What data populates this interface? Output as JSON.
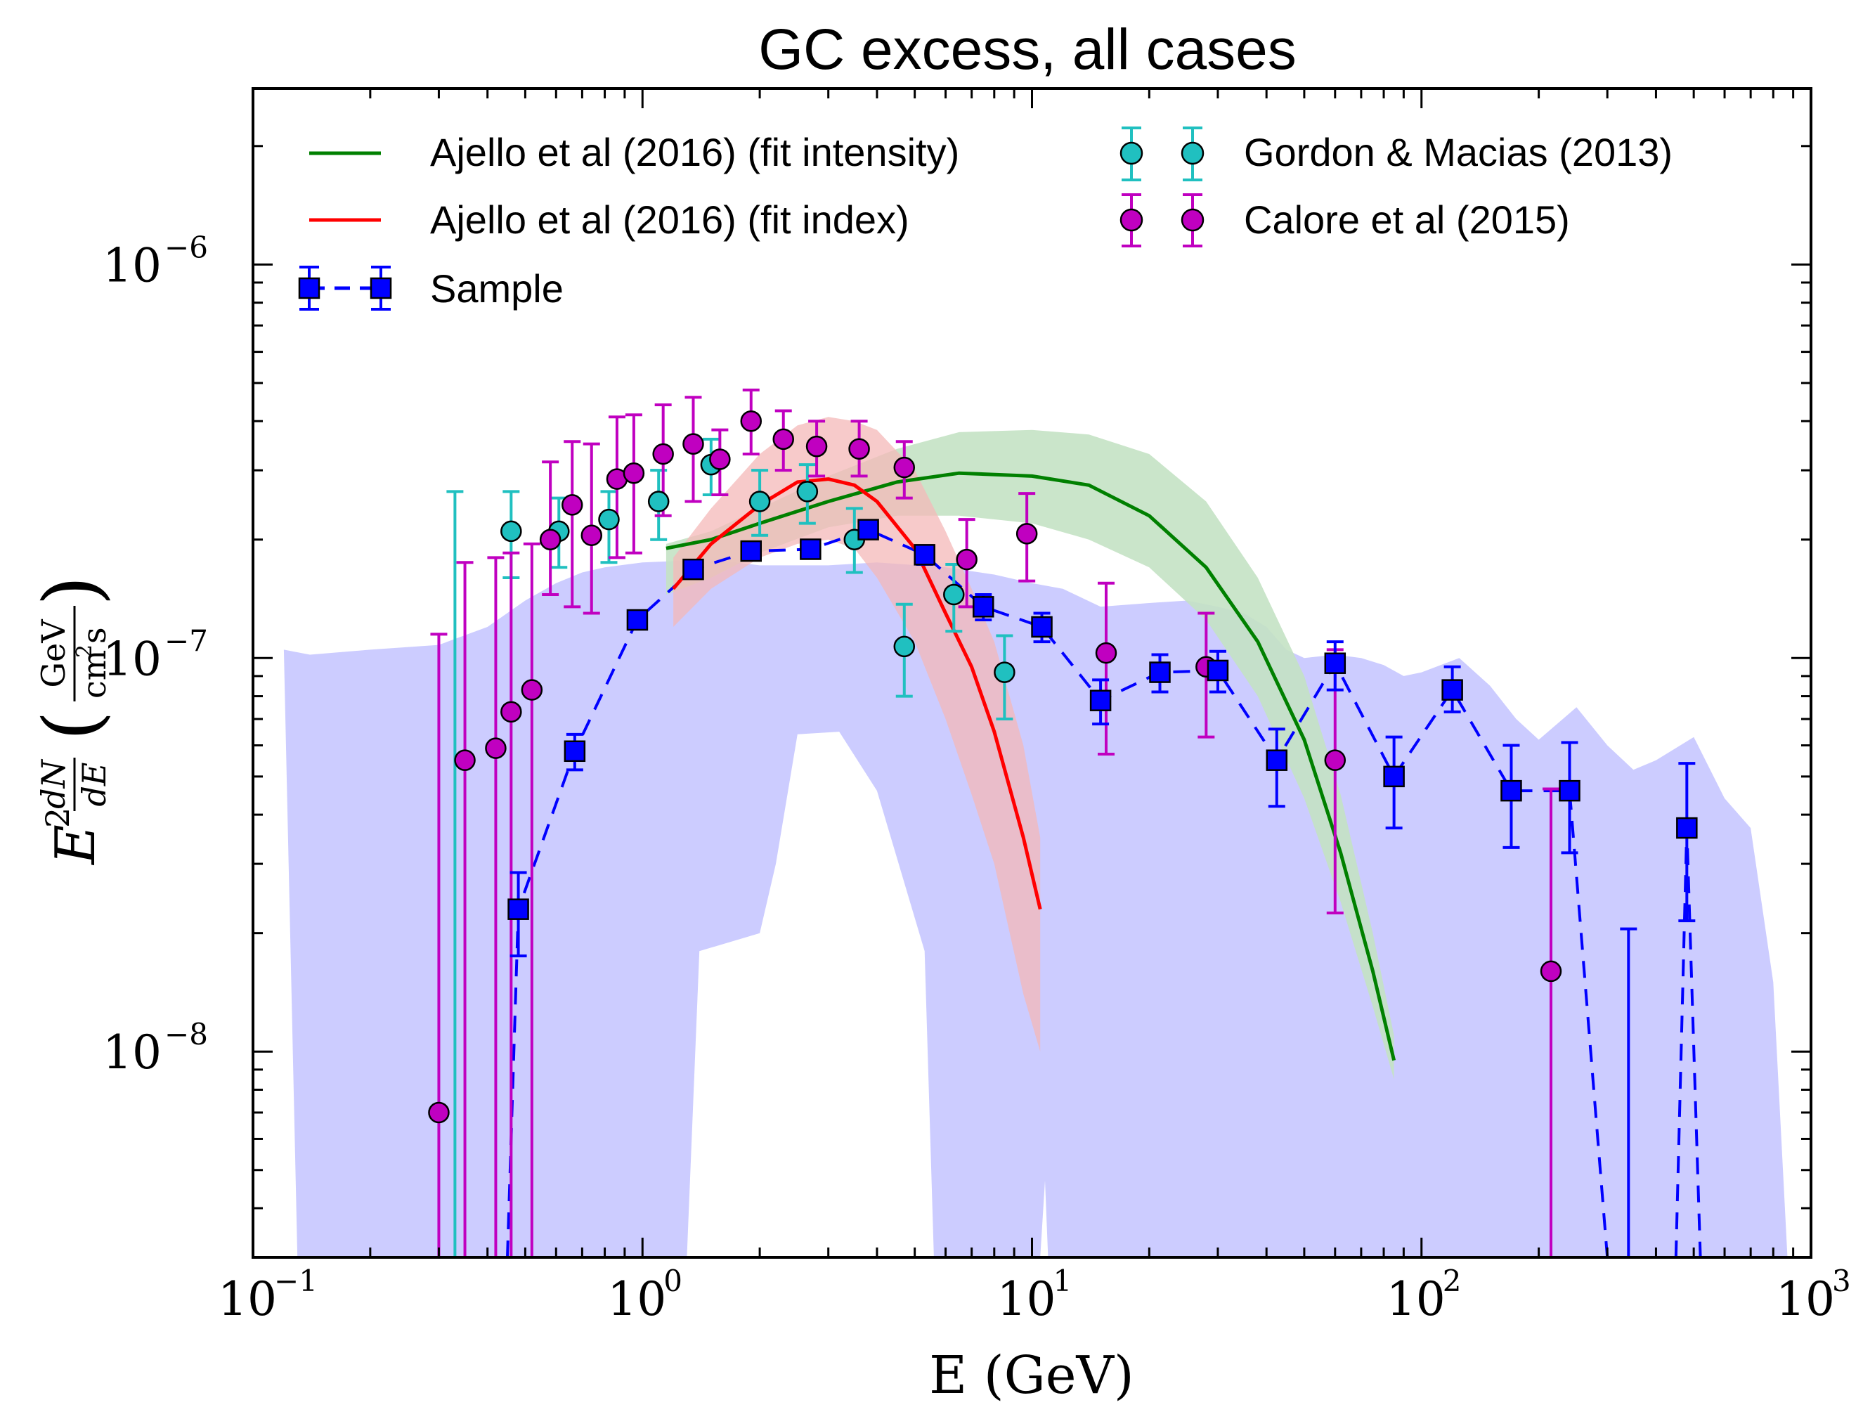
{
  "chart_data": {
    "type": "scatter",
    "title": "GC excess, all cases",
    "xlabel": "E (GeV)",
    "ylabel": {
      "main": "E",
      "exp": "2",
      "num": "dN",
      "den": "dE",
      "unit_num": "GeV",
      "unit_den_cm": "cm",
      "unit_den_exp": "2",
      "unit_den_s": "s"
    },
    "xscale": "log",
    "yscale": "log",
    "xlim": [
      0.1,
      1000
    ],
    "ylim": [
      3e-09,
      2.8e-06
    ],
    "x_ticks": [
      {
        "value": 0.1,
        "base": "10",
        "exp": "−1"
      },
      {
        "value": 1,
        "base": "10",
        "exp": "0"
      },
      {
        "value": 10,
        "base": "10",
        "exp": "1"
      },
      {
        "value": 100,
        "base": "10",
        "exp": "2"
      },
      {
        "value": 1000,
        "base": "10",
        "exp": "3"
      }
    ],
    "y_ticks": [
      {
        "value": 1e-08,
        "base": "10",
        "exp": "−8"
      },
      {
        "value": 1e-07,
        "base": "10",
        "exp": "−7"
      },
      {
        "value": 1e-06,
        "base": "10",
        "exp": "−6"
      }
    ],
    "legend": {
      "placement": "top",
      "entries": [
        {
          "key": "ajello_intensity",
          "label": "Ajello et al (2016) (fit intensity)"
        },
        {
          "key": "ajello_index",
          "label": "Ajello et al (2016) (fit index)"
        },
        {
          "key": "sample",
          "label": "Sample"
        },
        {
          "key": "gordon",
          "label": "Gordon & Macias (2013)"
        },
        {
          "key": "calore",
          "label": "Calore et al (2015)"
        }
      ]
    },
    "colors": {
      "ajello_intensity": "#008000",
      "ajello_index": "#ff0000",
      "sample": "#0000ff",
      "gordon": "#20c0c0",
      "calore": "#c000c0",
      "sample_band": "#ccccff",
      "intensity_band": "#c4e2c4",
      "index_band": "#f4b8b8"
    },
    "sample_band": {
      "upper": [
        [
          0.12,
          1.05e-07
        ],
        [
          0.14,
          1.02e-07
        ],
        [
          0.2,
          1.05e-07
        ],
        [
          0.3,
          1.08e-07
        ],
        [
          0.4,
          1.2e-07
        ],
        [
          0.5,
          1.4e-07
        ],
        [
          0.6,
          1.55e-07
        ],
        [
          0.7,
          1.65e-07
        ],
        [
          0.8,
          1.7e-07
        ],
        [
          1.0,
          1.75e-07
        ],
        [
          1.5,
          1.78e-07
        ],
        [
          2.0,
          1.72e-07
        ],
        [
          3.0,
          1.72e-07
        ],
        [
          4.0,
          1.75e-07
        ],
        [
          6.0,
          1.7e-07
        ],
        [
          8.0,
          1.63e-07
        ],
        [
          10,
          1.55e-07
        ],
        [
          12,
          1.5e-07
        ],
        [
          15,
          1.35e-07
        ],
        [
          20,
          1.38e-07
        ],
        [
          25,
          1.4e-07
        ],
        [
          30,
          1.35e-07
        ],
        [
          35,
          1.3e-07
        ],
        [
          40,
          1.2e-07
        ],
        [
          45,
          1.05e-07
        ],
        [
          50,
          1e-07
        ],
        [
          60,
          1.02e-07
        ],
        [
          70,
          1e-07
        ],
        [
          80,
          9.6e-08
        ],
        [
          90,
          9e-08
        ],
        [
          100,
          9.2e-08
        ],
        [
          125,
          1e-07
        ],
        [
          150,
          8.5e-08
        ],
        [
          175,
          7e-08
        ],
        [
          200,
          6.2e-08
        ],
        [
          250,
          7.5e-08
        ],
        [
          300,
          6e-08
        ],
        [
          350,
          5.2e-08
        ],
        [
          400,
          5.5e-08
        ],
        [
          500,
          6.3e-08
        ],
        [
          600,
          4.4e-08
        ],
        [
          700,
          3.7e-08
        ],
        [
          800,
          1.5e-08
        ],
        [
          870,
          3e-09
        ]
      ],
      "lower": [
        [
          0.13,
          3e-09
        ],
        [
          1.3,
          3e-09
        ],
        [
          1.4,
          1.8e-08
        ],
        [
          2.0,
          2e-08
        ],
        [
          2.2,
          3e-08
        ],
        [
          2.5,
          6.4e-08
        ],
        [
          3.2,
          6.5e-08
        ],
        [
          4.0,
          4.6e-08
        ],
        [
          5.3,
          1.8e-08
        ],
        [
          5.6,
          3e-09
        ],
        [
          10.5,
          3e-09
        ],
        [
          10.8,
          4.7e-09
        ],
        [
          11.0,
          3e-09
        ]
      ]
    },
    "ajello_intensity": {
      "x": [
        1.15,
        1.5,
        2.0,
        3.0,
        4.5,
        6.5,
        10,
        14,
        20,
        28,
        38,
        50,
        62,
        75,
        85
      ],
      "y": [
        1.9e-07,
        2e-07,
        2.2e-07,
        2.5e-07,
        2.8e-07,
        2.95e-07,
        2.9e-07,
        2.75e-07,
        2.3e-07,
        1.7e-07,
        1.1e-07,
        6.2e-08,
        3.2e-08,
        1.6e-08,
        9.5e-09
      ],
      "upper": [
        1.95e-07,
        2.1e-07,
        2.4e-07,
        2.9e-07,
        3.4e-07,
        3.75e-07,
        3.8e-07,
        3.7e-07,
        3.3e-07,
        2.5e-07,
        1.6e-07,
        9e-08,
        4.5e-08,
        2e-08,
        1.1e-08
      ],
      "lower": [
        1.45e-07,
        1.6e-07,
        1.85e-07,
        2.15e-07,
        2.3e-07,
        2.3e-07,
        2.2e-07,
        2e-07,
        1.7e-07,
        1.25e-07,
        8e-08,
        4.4e-08,
        2.4e-08,
        1.3e-08,
        8.5e-09
      ]
    },
    "ajello_index": {
      "x": [
        1.2,
        1.5,
        2.0,
        2.5,
        3.0,
        3.5,
        4.0,
        5.0,
        6.0,
        7.0,
        8.0,
        9.5,
        10.5
      ],
      "y": [
        1.5e-07,
        1.95e-07,
        2.45e-07,
        2.8e-07,
        2.85e-07,
        2.75e-07,
        2.5e-07,
        1.9e-07,
        1.3e-07,
        9.5e-08,
        6.5e-08,
        3.5e-08,
        2.3e-08
      ],
      "upper": [
        1.8e-07,
        2.4e-07,
        3.3e-07,
        3.9e-07,
        4.1e-07,
        4e-07,
        3.8e-07,
        3e-07,
        2.1e-07,
        1.5e-07,
        1.1e-07,
        6e-08,
        3.5e-08
      ],
      "lower": [
        1.2e-07,
        1.5e-07,
        1.8e-07,
        1.95e-07,
        2e-07,
        1.9e-07,
        1.6e-07,
        1.1e-07,
        7e-08,
        4.5e-08,
        3e-08,
        1.4e-08,
        1e-08
      ]
    },
    "sample": {
      "points": [
        {
          "x": 0.48,
          "y": 2.3e-08,
          "lo": 1.75e-08,
          "hi": 2.85e-08
        },
        {
          "x": 0.67,
          "y": 5.8e-08,
          "lo": 5.2e-08,
          "hi": 6.4e-08
        },
        {
          "x": 0.97,
          "y": 1.25e-07,
          "lo": 1.2e-07,
          "hi": 1.3e-07
        },
        {
          "x": 1.35,
          "y": 1.68e-07,
          "lo": 1.6e-07,
          "hi": 1.76e-07
        },
        {
          "x": 1.9,
          "y": 1.87e-07,
          "lo": 1.78e-07,
          "hi": 1.96e-07
        },
        {
          "x": 2.7,
          "y": 1.89e-07,
          "lo": 1.82e-07,
          "hi": 1.97e-07
        },
        {
          "x": 3.8,
          "y": 2.12e-07,
          "lo": 2.02e-07,
          "hi": 2.22e-07
        },
        {
          "x": 5.3,
          "y": 1.83e-07,
          "lo": 1.73e-07,
          "hi": 1.93e-07
        },
        {
          "x": 7.5,
          "y": 1.35e-07,
          "lo": 1.25e-07,
          "hi": 1.45e-07
        },
        {
          "x": 10.6,
          "y": 1.2e-07,
          "lo": 1.1e-07,
          "hi": 1.3e-07
        },
        {
          "x": 15,
          "y": 7.8e-08,
          "lo": 6.8e-08,
          "hi": 8.8e-08
        },
        {
          "x": 21.3,
          "y": 9.2e-08,
          "lo": 8.2e-08,
          "hi": 1.02e-07
        },
        {
          "x": 30,
          "y": 9.3e-08,
          "lo": 8.2e-08,
          "hi": 1.04e-07
        },
        {
          "x": 42.5,
          "y": 5.5e-08,
          "lo": 4.2e-08,
          "hi": 6.6e-08
        },
        {
          "x": 60,
          "y": 9.7e-08,
          "lo": 8.3e-08,
          "hi": 1.1e-07
        },
        {
          "x": 85,
          "y": 5e-08,
          "lo": 3.7e-08,
          "hi": 6.3e-08
        },
        {
          "x": 120,
          "y": 8.3e-08,
          "lo": 7.3e-08,
          "hi": 9.5e-08
        },
        {
          "x": 170,
          "y": 4.6e-08,
          "lo": 3.3e-08,
          "hi": 6e-08
        },
        {
          "x": 240,
          "y": 4.6e-08,
          "lo": 3.2e-08,
          "hi": 6.1e-08
        },
        {
          "x": 480,
          "y": 3.7e-08,
          "lo": 2.15e-08,
          "hi": 5.4e-08
        }
      ],
      "line": [
        [
          0.45,
          3e-09
        ],
        [
          0.48,
          2.3e-08
        ],
        [
          0.67,
          5.8e-08
        ],
        [
          0.97,
          1.25e-07
        ],
        [
          1.35,
          1.68e-07
        ],
        [
          1.9,
          1.87e-07
        ],
        [
          2.7,
          1.89e-07
        ],
        [
          3.8,
          2.12e-07
        ],
        [
          5.3,
          1.83e-07
        ],
        [
          7.5,
          1.35e-07
        ],
        [
          10.6,
          1.2e-07
        ],
        [
          15,
          7.8e-08
        ],
        [
          21.3,
          9.2e-08
        ],
        [
          30,
          9.3e-08
        ],
        [
          42.5,
          5.5e-08
        ],
        [
          60,
          9.7e-08
        ],
        [
          85,
          5e-08
        ],
        [
          120,
          8.3e-08
        ],
        [
          170,
          4.6e-08
        ],
        [
          240,
          4.6e-08
        ],
        [
          300,
          3e-09
        ],
        [
          null,
          null
        ],
        [
          450,
          3e-09
        ],
        [
          480,
          3.7e-08
        ],
        [
          520,
          3e-09
        ]
      ],
      "upper_limits": [
        {
          "x": 340,
          "hi": 2.05e-08
        }
      ]
    },
    "gordon": {
      "points": [
        {
          "x": 0.33,
          "y": null,
          "lo": 3e-09,
          "hi": 2.65e-07
        },
        {
          "x": 0.46,
          "y": 2.1e-07,
          "lo": 1.6e-07,
          "hi": 2.65e-07
        },
        {
          "x": 0.61,
          "y": 2.1e-07,
          "lo": 1.7e-07,
          "hi": 2.55e-07
        },
        {
          "x": 0.82,
          "y": 2.25e-07,
          "lo": 1.75e-07,
          "hi": 2.65e-07
        },
        {
          "x": 1.1,
          "y": 2.5e-07,
          "lo": 2e-07,
          "hi": 3e-07
        },
        {
          "x": 1.5,
          "y": 3.1e-07,
          "lo": 2.6e-07,
          "hi": 3.6e-07
        },
        {
          "x": 2.0,
          "y": 2.5e-07,
          "lo": 2.05e-07,
          "hi": 3e-07
        },
        {
          "x": 2.65,
          "y": 2.65e-07,
          "lo": 2.2e-07,
          "hi": 3.1e-07
        },
        {
          "x": 3.5,
          "y": 2e-07,
          "lo": 1.65e-07,
          "hi": 2.4e-07
        },
        {
          "x": 4.7,
          "y": 1.07e-07,
          "lo": 8e-08,
          "hi": 1.37e-07
        },
        {
          "x": 6.3,
          "y": 1.45e-07,
          "lo": 1.17e-07,
          "hi": 1.73e-07
        },
        {
          "x": 8.5,
          "y": 9.2e-08,
          "lo": 7e-08,
          "hi": 1.14e-07
        }
      ]
    },
    "calore": {
      "points": [
        {
          "x": 0.3,
          "y": 7e-09,
          "lo": 3e-09,
          "hi": 1.15e-07
        },
        {
          "x": 0.35,
          "y": 5.5e-08,
          "lo": 3e-09,
          "hi": 1.75e-07
        },
        {
          "x": 0.42,
          "y": 5.9e-08,
          "lo": 3e-09,
          "hi": 1.8e-07
        },
        {
          "x": 0.46,
          "y": 7.3e-08,
          "lo": 3e-09,
          "hi": 1.85e-07
        },
        {
          "x": 0.52,
          "y": 8.3e-08,
          "lo": 3e-09,
          "hi": 1.95e-07
        },
        {
          "x": 0.58,
          "y": 2e-07,
          "lo": 1.45e-07,
          "hi": 3.15e-07
        },
        {
          "x": 0.66,
          "y": 2.45e-07,
          "lo": 1.35e-07,
          "hi": 3.55e-07
        },
        {
          "x": 0.74,
          "y": 2.05e-07,
          "lo": 1.3e-07,
          "hi": 3.5e-07
        },
        {
          "x": 0.86,
          "y": 2.85e-07,
          "lo": 1.8e-07,
          "hi": 4.1e-07
        },
        {
          "x": 0.95,
          "y": 2.95e-07,
          "lo": 1.85e-07,
          "hi": 4.15e-07
        },
        {
          "x": 1.13,
          "y": 3.3e-07,
          "lo": 2.3e-07,
          "hi": 4.4e-07
        },
        {
          "x": 1.35,
          "y": 3.5e-07,
          "lo": 2.5e-07,
          "hi": 4.6e-07
        },
        {
          "x": 1.58,
          "y": 3.2e-07,
          "lo": 2.6e-07,
          "hi": 3.8e-07
        },
        {
          "x": 1.9,
          "y": 4e-07,
          "lo": 3.3e-07,
          "hi": 4.8e-07
        },
        {
          "x": 2.3,
          "y": 3.6e-07,
          "lo": 3e-07,
          "hi": 4.25e-07
        },
        {
          "x": 2.8,
          "y": 3.45e-07,
          "lo": 2.9e-07,
          "hi": 4e-07
        },
        {
          "x": 3.6,
          "y": 3.4e-07,
          "lo": 2.9e-07,
          "hi": 4e-07
        },
        {
          "x": 4.7,
          "y": 3.05e-07,
          "lo": 2.55e-07,
          "hi": 3.55e-07
        },
        {
          "x": 6.8,
          "y": 1.78e-07,
          "lo": 1.35e-07,
          "hi": 2.25e-07
        },
        {
          "x": 9.7,
          "y": 2.07e-07,
          "lo": 1.57e-07,
          "hi": 2.62e-07
        },
        {
          "x": 15.5,
          "y": 1.03e-07,
          "lo": 5.7e-08,
          "hi": 1.55e-07
        },
        {
          "x": 28,
          "y": 9.5e-08,
          "lo": 6.3e-08,
          "hi": 1.3e-07
        },
        {
          "x": 60,
          "y": 5.5e-08,
          "lo": 2.25e-08,
          "hi": 1.05e-07
        },
        {
          "x": 215,
          "y": 1.6e-08,
          "lo": 3e-09,
          "hi": 4.65e-08
        }
      ]
    }
  }
}
